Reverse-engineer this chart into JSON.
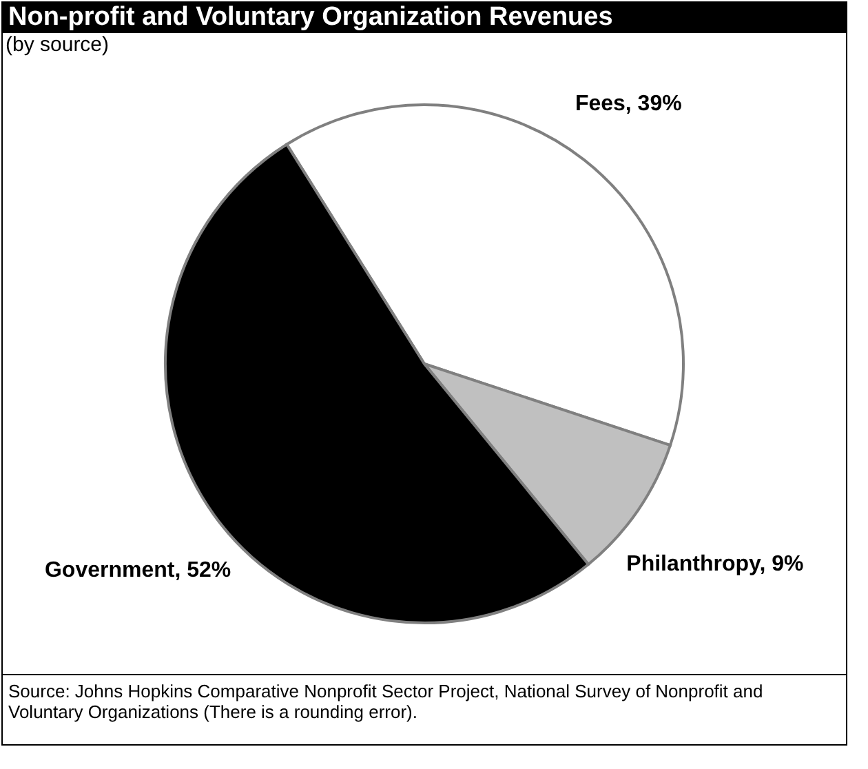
{
  "chart_data": {
    "type": "pie",
    "title": "Non-profit and Voluntary Organization Revenues",
    "subtitle": "(by source)",
    "categories": [
      "Fees",
      "Philanthropy",
      "Government"
    ],
    "values": [
      39,
      9,
      52
    ],
    "value_labels": [
      "39%",
      "9%",
      "52%"
    ],
    "colors": [
      "#ffffff",
      "#c0c0c0",
      "#000000"
    ],
    "annotations": [
      "Source: Johns Hopkins Comparative Nonprofit Sector Project, National Survey of Nonprofit and Voluntary Organizations (There is a rounding error)."
    ]
  }
}
